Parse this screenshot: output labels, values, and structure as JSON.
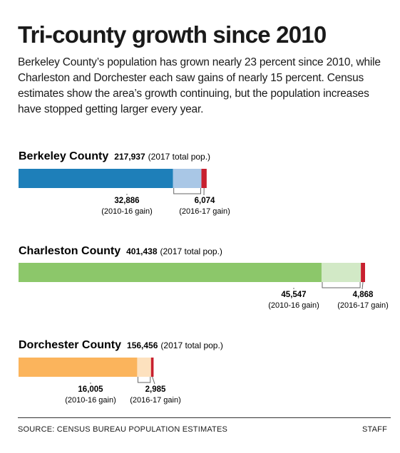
{
  "title": "Tri-county growth since 2010",
  "intro": "Berkeley County’s population has grown nearly 23 percent since 2010, while Charleston and Dorchester each saw gains of nearly 15 percent. Census estimates show the area’s growth continuing, but the population increases have stopped getting larger every year.",
  "footer": {
    "source": "SOURCE: CENSUS BUREAU POPULATION ESTIMATES",
    "credit": "STAFF"
  },
  "colors": {
    "berkeley_base": "#1e7fb9",
    "berkeley_gain": "#a9c7e6",
    "charleston_base": "#8cc76a",
    "charleston_gain": "#d2e9c6",
    "dorchester_base": "#fbb45c",
    "dorchester_gain": "#fde1be",
    "recent_gain": "#c8202f"
  },
  "chart_data": {
    "type": "bar",
    "orientation": "horizontal",
    "stacked": true,
    "unit_note": "(2017 total pop.)",
    "counties": [
      {
        "name": "Berkeley County",
        "total_2017": 217937,
        "total_label": "217,937",
        "segments": [
          {
            "label": "",
            "value": 178977
          },
          {
            "label": "32,886",
            "note": "(2010-16 gain)",
            "value": 32886
          },
          {
            "label": "6,074",
            "note": "(2016-17 gain)",
            "value": 6074
          }
        ]
      },
      {
        "name": "Charleston County",
        "total_2017": 401438,
        "total_label": "401,438",
        "segments": [
          {
            "label": "",
            "value": 351023
          },
          {
            "label": "45,547",
            "note": "(2010-16 gain)",
            "value": 45547
          },
          {
            "label": "4,868",
            "note": "(2016-17 gain)",
            "value": 4868
          }
        ]
      },
      {
        "name": "Dorchester County",
        "total_2017": 156456,
        "total_label": "156,456",
        "segments": [
          {
            "label": "",
            "value": 137466
          },
          {
            "label": "16,005",
            "note": "(2010-16 gain)",
            "value": 16005
          },
          {
            "label": "2,985",
            "note": "(2016-17 gain)",
            "value": 2985
          }
        ]
      }
    ]
  }
}
